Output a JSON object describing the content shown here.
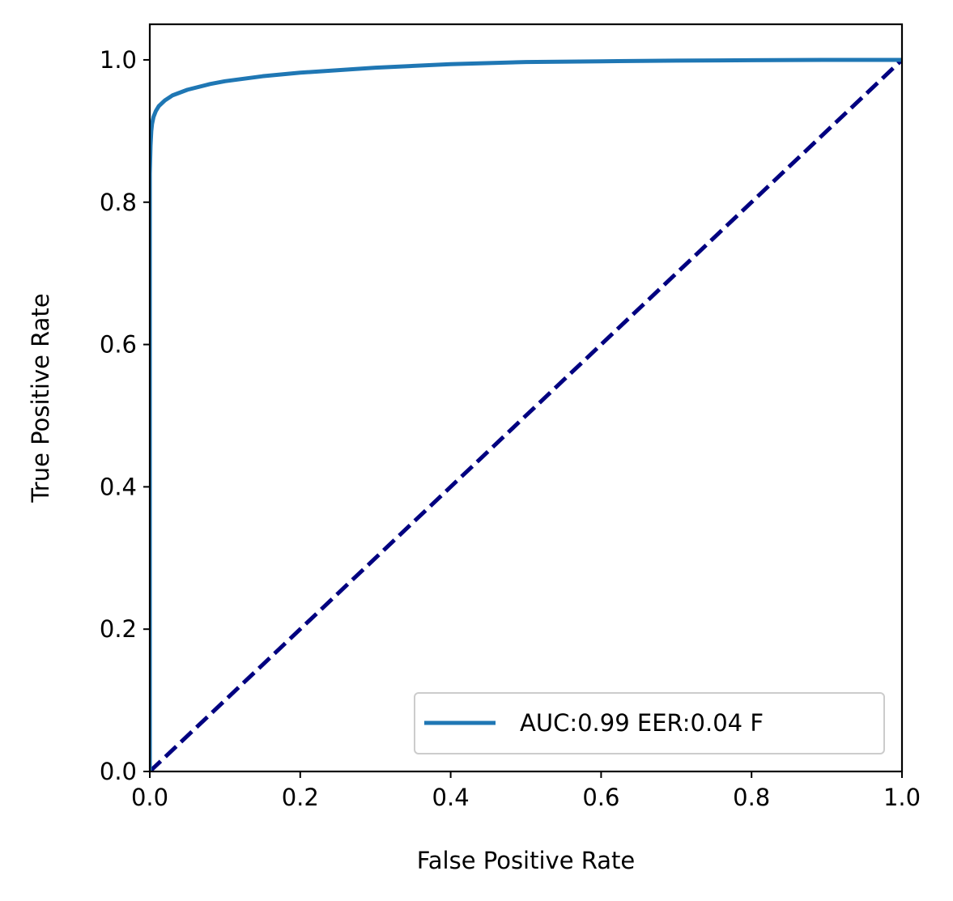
{
  "chart_data": {
    "type": "line",
    "title": "",
    "xlabel": "False Positive Rate",
    "ylabel": "True Positive Rate",
    "xlim": [
      0.0,
      1.0
    ],
    "ylim": [
      0.0,
      1.05
    ],
    "xticks": [
      "0.0",
      "0.2",
      "0.4",
      "0.6",
      "0.8",
      "1.0"
    ],
    "yticks": [
      "0.0",
      "0.2",
      "0.4",
      "0.6",
      "0.8",
      "1.0"
    ],
    "grid": false,
    "legend": {
      "location": "lower-right"
    },
    "series": [
      {
        "name": "AUC:0.99 EER:0.04 F",
        "color": "#1f77b4",
        "style": "solid",
        "x": [
          0.0,
          0.0,
          0.001,
          0.002,
          0.003,
          0.005,
          0.008,
          0.012,
          0.02,
          0.03,
          0.05,
          0.08,
          0.1,
          0.15,
          0.2,
          0.3,
          0.4,
          0.5,
          0.6,
          0.7,
          0.8,
          0.9,
          1.0
        ],
        "y": [
          0.0,
          0.84,
          0.88,
          0.9,
          0.91,
          0.92,
          0.928,
          0.935,
          0.943,
          0.95,
          0.958,
          0.966,
          0.97,
          0.977,
          0.982,
          0.989,
          0.994,
          0.997,
          0.998,
          0.999,
          0.9995,
          1.0,
          1.0
        ]
      },
      {
        "color": "#000080",
        "style": "dashed",
        "x": [
          0.0,
          1.0
        ],
        "y": [
          0.0,
          1.0
        ]
      }
    ]
  }
}
